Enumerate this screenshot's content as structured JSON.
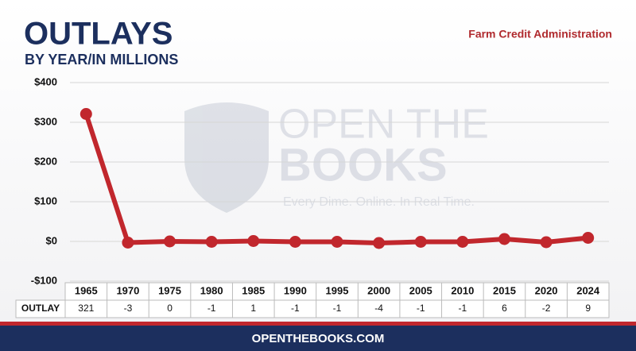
{
  "chart_data": {
    "type": "line",
    "title": "OUTLAYS",
    "subtitle": "BY YEAR/IN MILLIONS",
    "source": "Farm Credit Administration",
    "watermark": {
      "name": "OPEN THE",
      "name2": "BOOKS",
      "tagline": "Every Dime. Online. In Real Time."
    },
    "footer": "OPENTHEBOOKS.COM",
    "row_label": "OUTLAY",
    "categories": [
      "1965",
      "1970",
      "1975",
      "1980",
      "1985",
      "1990",
      "1995",
      "2000",
      "2005",
      "2010",
      "2015",
      "2020",
      "2024"
    ],
    "values": [
      321,
      -3,
      0,
      -1,
      1,
      -1,
      -1,
      -4,
      -1,
      -1,
      6,
      -2,
      9
    ],
    "color": "#c1272d",
    "ylim": [
      -100,
      400
    ],
    "yticks": [
      {
        "value": -100,
        "label": "-$100"
      },
      {
        "value": 0,
        "label": "$0"
      },
      {
        "value": 100,
        "label": "$100"
      },
      {
        "value": 200,
        "label": "$200"
      },
      {
        "value": 300,
        "label": "$300"
      },
      {
        "value": 400,
        "label": "$400"
      }
    ],
    "grid": true
  }
}
